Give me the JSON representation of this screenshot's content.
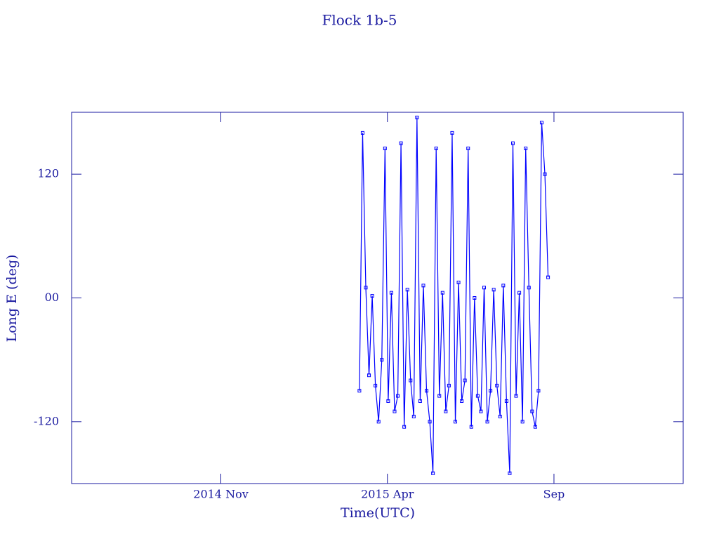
{
  "chart_data": {
    "type": "line",
    "title": "Flock 1b-5",
    "xlabel": "Time(UTC)",
    "ylabel": "Long E (deg)",
    "x": [
      2015.18,
      2015.188,
      2015.196,
      2015.204,
      2015.212,
      2015.22,
      2015.228,
      2015.236,
      2015.244,
      2015.252,
      2015.26,
      2015.268,
      2015.276,
      2015.284,
      2015.292,
      2015.3,
      2015.308,
      2015.316,
      2015.324,
      2015.332,
      2015.34,
      2015.348,
      2015.356,
      2015.364,
      2015.372,
      2015.38,
      2015.388,
      2015.396,
      2015.404,
      2015.412,
      2015.42,
      2015.428,
      2015.436,
      2015.444,
      2015.452,
      2015.46,
      2015.468,
      2015.476,
      2015.484,
      2015.492,
      2015.5,
      2015.508,
      2015.516,
      2015.524,
      2015.532,
      2015.54,
      2015.548,
      2015.556,
      2015.564,
      2015.572,
      2015.58,
      2015.588,
      2015.596,
      2015.604,
      2015.612,
      2015.62,
      2015.628,
      2015.636,
      2015.644,
      2015.652
    ],
    "values": [
      -90,
      160,
      10,
      -75,
      2,
      -85,
      -120,
      -60,
      145,
      -100,
      5,
      -110,
      -95,
      150,
      -125,
      8,
      -80,
      -115,
      175,
      -100,
      12,
      -90,
      -120,
      -170,
      145,
      -95,
      5,
      -110,
      -85,
      160,
      -120,
      15,
      -100,
      -80,
      145,
      -125,
      0,
      -95,
      -110,
      10,
      -120,
      -90,
      8,
      -85,
      -115,
      12,
      -100,
      -170,
      150,
      -95,
      5,
      -120,
      145,
      10,
      -110,
      -125,
      -90,
      170,
      120,
      20
    ],
    "color": "#0000ff",
    "xlim": [
      2014.46,
      2015.99
    ],
    "xticks": [
      {
        "value": 2014.8333,
        "label": "2014 Nov"
      },
      {
        "value": 2015.25,
        "label": "2015 Apr"
      },
      {
        "value": 2015.6667,
        "label": "Sep"
      }
    ],
    "ylim": [
      -180,
      180
    ],
    "yticks": [
      -120,
      {
        "value": 0,
        "label": "00"
      },
      120
    ]
  }
}
